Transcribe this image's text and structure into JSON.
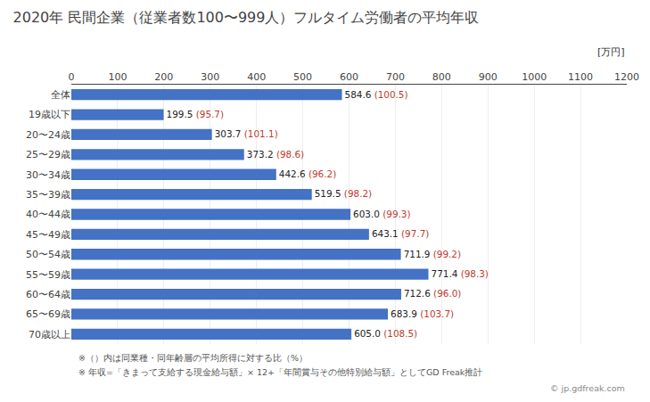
{
  "chart_data": {
    "type": "bar",
    "orientation": "horizontal",
    "title": "2020年 民間企業（従業者数100〜999人）フルタイム労働者の平均年収",
    "categories": [
      "全体",
      "19歳以下",
      "20〜24歳",
      "25〜29歳",
      "30〜34歳",
      "35〜39歳",
      "40〜44歳",
      "45〜49歳",
      "50〜54歳",
      "55〜59歳",
      "60〜64歳",
      "65〜69歳",
      "70歳以上"
    ],
    "values": [
      584.6,
      199.5,
      303.7,
      373.2,
      442.6,
      519.5,
      603.0,
      643.1,
      711.9,
      771.4,
      712.6,
      683.9,
      605.0
    ],
    "value_labels": [
      "584.6",
      "199.5",
      "303.7",
      "373.2",
      "442.6",
      "519.5",
      "603.0",
      "643.1",
      "711.9",
      "771.4",
      "712.6",
      "683.9",
      "605.0"
    ],
    "ratios": {
      "labels": [
        "(100.5)",
        "(95.7)",
        "(101.1)",
        "(98.6)",
        "(96.2)",
        "(98.2)",
        "(99.3)",
        "(97.7)",
        "(99.2)",
        "(98.3)",
        "(96.0)",
        "(103.7)",
        "(108.5)"
      ],
      "color": "#C0392B"
    },
    "color": "#4472C4",
    "data_labels": true,
    "xlim": [
      0,
      1200
    ],
    "xticks": [
      0,
      100,
      200,
      300,
      400,
      500,
      600,
      700,
      800,
      900,
      1000,
      1100,
      1200
    ],
    "grid": true,
    "annotations": [
      "[万円]",
      "※（）内は同業種・同年齢層の平均所得に対する比（%）",
      "※ 年収=「きまって支給する現金給与額」× 12+「年間賞与その他特別給与額」としてGD Freak推計",
      "© jp.gdfreak.com"
    ]
  }
}
